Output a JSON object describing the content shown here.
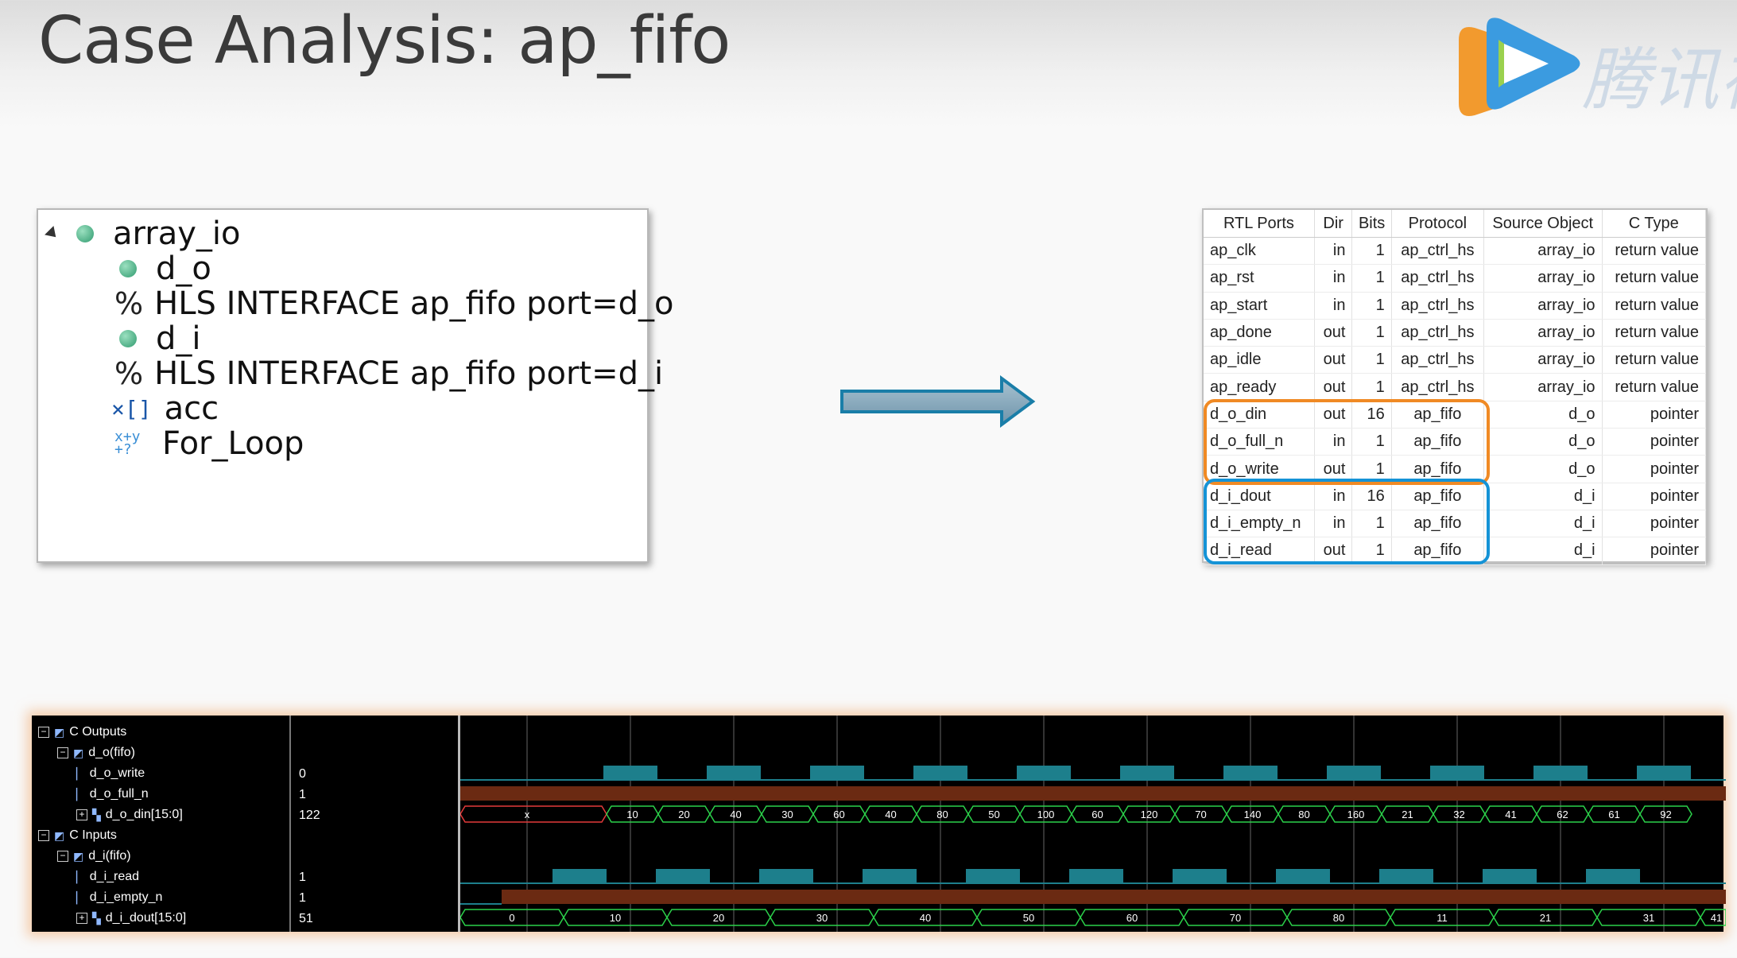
{
  "slide": {
    "title": "Case Analysis: ap_fifo"
  },
  "watermark": {
    "text": "腾讯视"
  },
  "tree": [
    {
      "label": "array_io",
      "icon": "function-dot-icon"
    },
    {
      "label": "d_o",
      "icon": "port-dot-icon"
    },
    {
      "label": "HLS INTERFACE ap_fifo port=d_o",
      "icon": "directive-icon",
      "prefix": "%"
    },
    {
      "label": "d_i",
      "icon": "port-dot-icon"
    },
    {
      "label": "HLS INTERFACE ap_fifo port=d_i",
      "icon": "directive-icon",
      "prefix": "%"
    },
    {
      "label": "acc",
      "icon": "array-icon",
      "glyph": "×[]"
    },
    {
      "label": "For_Loop",
      "icon": "loop-icon"
    }
  ],
  "rtl_table": {
    "headers": [
      "RTL Ports",
      "Dir",
      "Bits",
      "Protocol",
      "Source Object",
      "C Type"
    ],
    "rows": [
      [
        "ap_clk",
        "in",
        "1",
        "ap_ctrl_hs",
        "array_io",
        "return value"
      ],
      [
        "ap_rst",
        "in",
        "1",
        "ap_ctrl_hs",
        "array_io",
        "return value"
      ],
      [
        "ap_start",
        "in",
        "1",
        "ap_ctrl_hs",
        "array_io",
        "return value"
      ],
      [
        "ap_done",
        "out",
        "1",
        "ap_ctrl_hs",
        "array_io",
        "return value"
      ],
      [
        "ap_idle",
        "out",
        "1",
        "ap_ctrl_hs",
        "array_io",
        "return value"
      ],
      [
        "ap_ready",
        "out",
        "1",
        "ap_ctrl_hs",
        "array_io",
        "return value"
      ],
      [
        "d_o_din",
        "out",
        "16",
        "ap_fifo",
        "d_o",
        "pointer"
      ],
      [
        "d_o_full_n",
        "in",
        "1",
        "ap_fifo",
        "d_o",
        "pointer"
      ],
      [
        "d_o_write",
        "out",
        "1",
        "ap_fifo",
        "d_o",
        "pointer"
      ],
      [
        "d_i_dout",
        "in",
        "16",
        "ap_fifo",
        "d_i",
        "pointer"
      ],
      [
        "d_i_empty_n",
        "in",
        "1",
        "ap_fifo",
        "d_i",
        "pointer"
      ],
      [
        "d_i_read",
        "out",
        "1",
        "ap_fifo",
        "d_i",
        "pointer"
      ]
    ],
    "highlight_colors": {
      "output_fifo": "#f08a24",
      "input_fifo": "#1593d6"
    }
  },
  "waveform": {
    "signals": [
      {
        "name": "C Outputs",
        "value": "",
        "kind": "group",
        "level": 0
      },
      {
        "name": "d_o(fifo)",
        "value": "",
        "kind": "group",
        "level": 1
      },
      {
        "name": "d_o_write",
        "value": "0",
        "kind": "bit",
        "level": 2
      },
      {
        "name": "d_o_full_n",
        "value": "1",
        "kind": "bit",
        "level": 2
      },
      {
        "name": "d_o_din[15:0]",
        "value": "122",
        "kind": "bus",
        "level": 2
      },
      {
        "name": "C Inputs",
        "value": "",
        "kind": "group",
        "level": 0
      },
      {
        "name": "d_i(fifo)",
        "value": "",
        "kind": "group",
        "level": 1
      },
      {
        "name": "d_i_read",
        "value": "1",
        "kind": "bit",
        "level": 2
      },
      {
        "name": "d_i_empty_n",
        "value": "1",
        "kind": "bit",
        "level": 2
      },
      {
        "name": "d_i_dout[15:0]",
        "value": "51",
        "kind": "bus",
        "level": 2
      }
    ],
    "d_o_din_values": [
      "x",
      "10",
      "20",
      "40",
      "30",
      "60",
      "40",
      "80",
      "50",
      "100",
      "60",
      "120",
      "70",
      "140",
      "80",
      "160",
      "21",
      "32",
      "41",
      "62",
      "61",
      "92"
    ],
    "d_i_dout_values": [
      "0",
      "10",
      "20",
      "30",
      "40",
      "50",
      "60",
      "70",
      "80",
      "11",
      "21",
      "31",
      "41"
    ],
    "colors": {
      "pulse": "#1d7f8c",
      "level_high": "#6b2a12",
      "bus": "#2bd14a",
      "invalid": "#e23a3a",
      "grid": "#666666"
    }
  }
}
